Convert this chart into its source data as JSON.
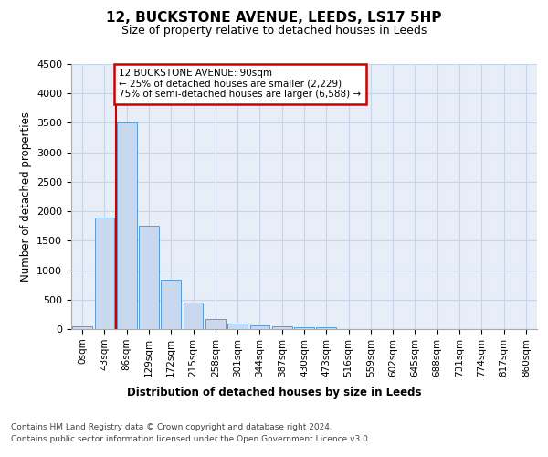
{
  "title": "12, BUCKSTONE AVENUE, LEEDS, LS17 5HP",
  "subtitle": "Size of property relative to detached houses in Leeds",
  "xlabel": "Distribution of detached houses by size in Leeds",
  "ylabel": "Number of detached properties",
  "bar_labels": [
    "0sqm",
    "43sqm",
    "86sqm",
    "129sqm",
    "172sqm",
    "215sqm",
    "258sqm",
    "301sqm",
    "344sqm",
    "387sqm",
    "430sqm",
    "473sqm",
    "516sqm",
    "559sqm",
    "602sqm",
    "645sqm",
    "688sqm",
    "731sqm",
    "774sqm",
    "817sqm",
    "860sqm"
  ],
  "bar_heights": [
    40,
    1900,
    3500,
    1750,
    840,
    450,
    170,
    100,
    60,
    40,
    30,
    30,
    0,
    0,
    0,
    0,
    0,
    0,
    0,
    0,
    0
  ],
  "bar_color": "#c8d8ee",
  "bar_edgecolor": "#5b9bd5",
  "grid_color": "#c8d4e8",
  "bg_color": "#e8eef8",
  "red_line_x": 1.5,
  "annotation_title": "12 BUCKSTONE AVENUE: 90sqm",
  "annotation_line1": "← 25% of detached houses are smaller (2,229)",
  "annotation_line2": "75% of semi-detached houses are larger (6,588) →",
  "annotation_box_color": "#ffffff",
  "annotation_border_color": "#cc0000",
  "ylim": [
    0,
    4500
  ],
  "yticks": [
    0,
    500,
    1000,
    1500,
    2000,
    2500,
    3000,
    3500,
    4000,
    4500
  ],
  "footnote1": "Contains HM Land Registry data © Crown copyright and database right 2024.",
  "footnote2": "Contains public sector information licensed under the Open Government Licence v3.0."
}
